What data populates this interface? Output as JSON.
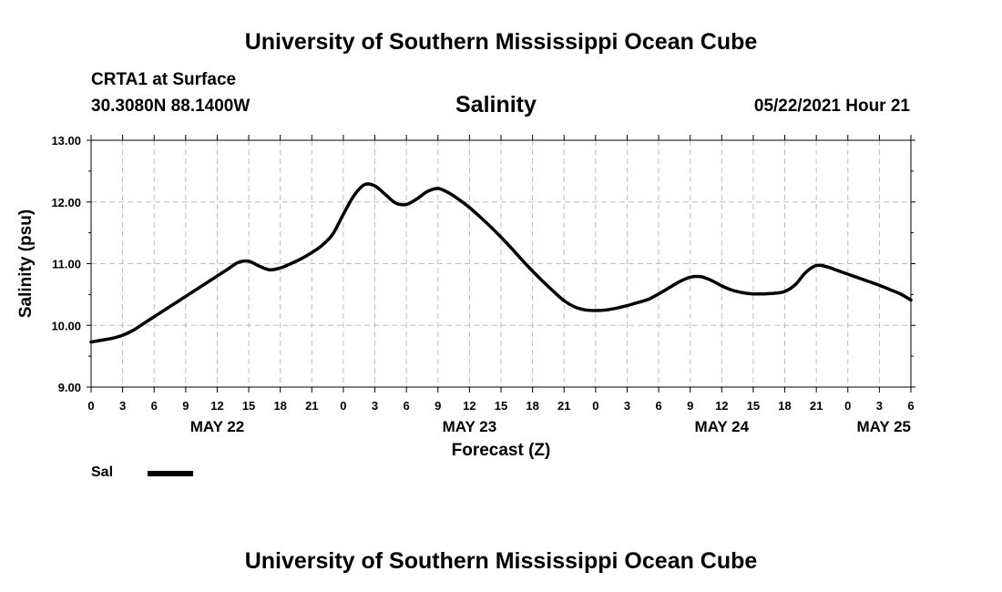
{
  "header": {
    "top_title": "University of Southern Mississippi Ocean Cube",
    "bottom_title": "University of Southern Mississippi Ocean Cube",
    "station": "CRTA1 at Surface",
    "coords": "30.3080N  88.1400W",
    "datetime": "05/22/2021 Hour 21"
  },
  "legend": {
    "label": "Sal",
    "color": "#000000"
  },
  "chart_data": {
    "type": "line",
    "title": "Salinity",
    "xlabel": "Forecast (Z)",
    "ylabel": "Salinity (psu)",
    "ylim": [
      9.0,
      13.0
    ],
    "xlim": [
      0,
      78
    ],
    "y_ticks": [
      9.0,
      10.0,
      11.0,
      12.0,
      13.0
    ],
    "y_tick_labels": [
      "9.00",
      "10.00",
      "11.00",
      "12.00",
      "13.00"
    ],
    "x_ticks": [
      0,
      3,
      6,
      9,
      12,
      15,
      18,
      21,
      24,
      27,
      30,
      33,
      36,
      39,
      42,
      45,
      48,
      51,
      54,
      57,
      60,
      63,
      66,
      69,
      72,
      75,
      78
    ],
    "x_tick_labels": [
      "0",
      "3",
      "6",
      "9",
      "12",
      "15",
      "18",
      "21",
      "0",
      "3",
      "6",
      "9",
      "12",
      "15",
      "18",
      "21",
      "0",
      "3",
      "6",
      "9",
      "12",
      "15",
      "18",
      "21",
      "0",
      "3",
      "6"
    ],
    "date_labels": [
      {
        "label": "MAY 22",
        "x": 12,
        "anchor": "middle"
      },
      {
        "label": "MAY 23",
        "x": 36,
        "anchor": "middle"
      },
      {
        "label": "MAY 24",
        "x": 60,
        "anchor": "middle"
      },
      {
        "label": "MAY 25",
        "x": 78,
        "anchor": "end"
      }
    ],
    "grid": true,
    "series": [
      {
        "name": "Sal",
        "color": "#000000",
        "x": [
          0,
          1,
          2,
          3,
          4,
          5,
          6,
          7,
          8,
          9,
          10,
          11,
          12,
          13,
          14,
          15,
          16,
          17,
          18,
          19,
          20,
          21,
          22,
          23,
          24,
          25,
          26,
          27,
          28,
          29,
          30,
          31,
          32,
          33,
          34,
          35,
          36,
          37,
          38,
          39,
          40,
          41,
          42,
          43,
          44,
          45,
          46,
          47,
          48,
          49,
          50,
          51,
          52,
          53,
          54,
          55,
          56,
          57,
          58,
          59,
          60,
          61,
          62,
          63,
          64,
          65,
          66,
          67,
          68,
          69,
          70,
          71,
          72,
          73,
          74,
          75,
          76,
          77,
          78
        ],
        "values": [
          9.73,
          9.76,
          9.79,
          9.84,
          9.92,
          10.03,
          10.14,
          10.25,
          10.36,
          10.47,
          10.58,
          10.69,
          10.8,
          10.91,
          11.02,
          11.04,
          10.96,
          10.9,
          10.93,
          11.0,
          11.08,
          11.18,
          11.3,
          11.48,
          11.8,
          12.1,
          12.28,
          12.26,
          12.12,
          11.98,
          11.96,
          12.05,
          12.17,
          12.22,
          12.15,
          12.04,
          11.91,
          11.76,
          11.6,
          11.43,
          11.25,
          11.06,
          10.88,
          10.71,
          10.55,
          10.4,
          10.3,
          10.25,
          10.24,
          10.25,
          10.28,
          10.32,
          10.37,
          10.42,
          10.51,
          10.61,
          10.71,
          10.78,
          10.79,
          10.73,
          10.64,
          10.57,
          10.53,
          10.51,
          10.51,
          10.52,
          10.55,
          10.66,
          10.86,
          10.97,
          10.95,
          10.89,
          10.83,
          10.77,
          10.71,
          10.65,
          10.58,
          10.51,
          10.41
        ]
      }
    ]
  }
}
